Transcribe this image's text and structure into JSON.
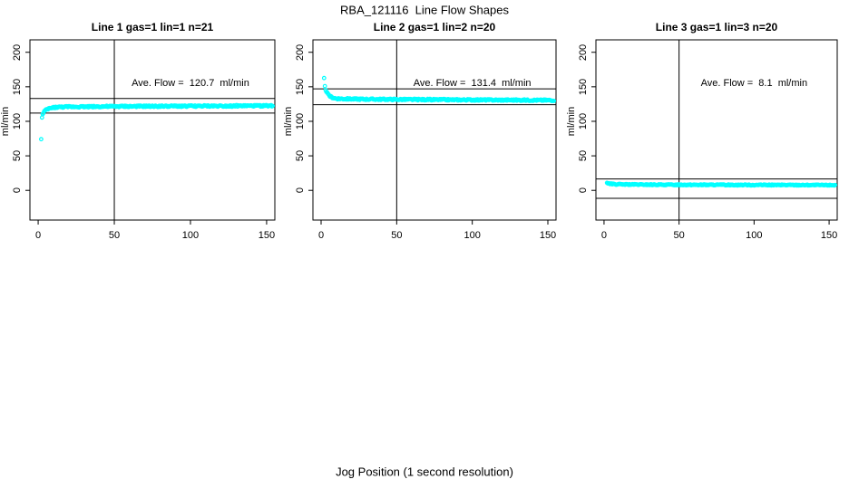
{
  "figure": {
    "title": "RBA_121116  Line Flow Shapes",
    "xlabel": "Jog Position (1 second resolution)",
    "background": "#ffffff",
    "axis_color": "#000000",
    "point_color": "#00ffff"
  },
  "chart_data": [
    {
      "type": "scatter",
      "title": "Line 1 gas=1 lin=1 n=21",
      "ylabel": "ml/min",
      "annotation": "Ave. Flow =  120.7  ml/min",
      "ave_flow_ml_min": 120.7,
      "x_ticks": [
        0,
        50,
        100,
        150
      ],
      "y_ticks": [
        0,
        50,
        100,
        150,
        200
      ],
      "xlim": [
        -5.4,
        155.4
      ],
      "ylim": [
        -43,
        218
      ],
      "grid": false,
      "vline_x": 50,
      "hlines": [
        133,
        112
      ],
      "annotation_pos": {
        "x": 100,
        "y": 155
      },
      "profile": [
        [
          2,
          75
        ],
        [
          2.4,
          104
        ],
        [
          3,
          110
        ],
        [
          4,
          114
        ],
        [
          5,
          116
        ],
        [
          6,
          117.5
        ],
        [
          8,
          119
        ],
        [
          12,
          120.5
        ],
        [
          20,
          121
        ],
        [
          50,
          121.5
        ],
        [
          100,
          122
        ],
        [
          150,
          122.5
        ]
      ],
      "noise": 1.1,
      "x_start": 2,
      "x_end": 154,
      "x_step": 0.5
    },
    {
      "type": "scatter",
      "title": "Line 2 gas=1 lin=2 n=20",
      "ylabel": "ml/min",
      "annotation": "Ave. Flow =  131.4  ml/min",
      "ave_flow_ml_min": 131.4,
      "x_ticks": [
        0,
        50,
        100,
        150
      ],
      "y_ticks": [
        0,
        50,
        100,
        150,
        200
      ],
      "xlim": [
        -5.4,
        155.4
      ],
      "ylim": [
        -43,
        218
      ],
      "grid": false,
      "vline_x": 50,
      "hlines": [
        147,
        124
      ],
      "annotation_pos": {
        "x": 100,
        "y": 155
      },
      "profile": [
        [
          2,
          162
        ],
        [
          2.5,
          150
        ],
        [
          3,
          146
        ],
        [
          4,
          141
        ],
        [
          5,
          138
        ],
        [
          6,
          136
        ],
        [
          8,
          134
        ],
        [
          10,
          133
        ],
        [
          15,
          132.5
        ],
        [
          30,
          132
        ],
        [
          60,
          131.5
        ],
        [
          100,
          131
        ],
        [
          150,
          130.5
        ]
      ],
      "noise": 1.1,
      "x_start": 2,
      "x_end": 154,
      "x_step": 0.5
    },
    {
      "type": "scatter",
      "title": "Line 3 gas=1 lin=3 n=20",
      "ylabel": "ml/min",
      "annotation": "Ave. Flow =  8.1  ml/min",
      "ave_flow_ml_min": 8.1,
      "x_ticks": [
        0,
        50,
        100,
        150
      ],
      "y_ticks": [
        0,
        50,
        100,
        150,
        200
      ],
      "xlim": [
        -5.4,
        155.4
      ],
      "ylim": [
        -43,
        218
      ],
      "grid": false,
      "vline_x": 50,
      "hlines": [
        16.5,
        -11.5
      ],
      "annotation_pos": {
        "x": 100,
        "y": 155
      },
      "profile": [
        [
          2,
          11
        ],
        [
          2.5,
          10.5
        ],
        [
          3,
          10
        ],
        [
          5,
          9.3
        ],
        [
          8,
          8.8
        ],
        [
          15,
          8.5
        ],
        [
          30,
          8.2
        ],
        [
          60,
          8
        ],
        [
          100,
          7.8
        ],
        [
          150,
          7.6
        ]
      ],
      "noise": 0.7,
      "x_start": 2,
      "x_end": 154,
      "x_step": 0.5
    }
  ]
}
